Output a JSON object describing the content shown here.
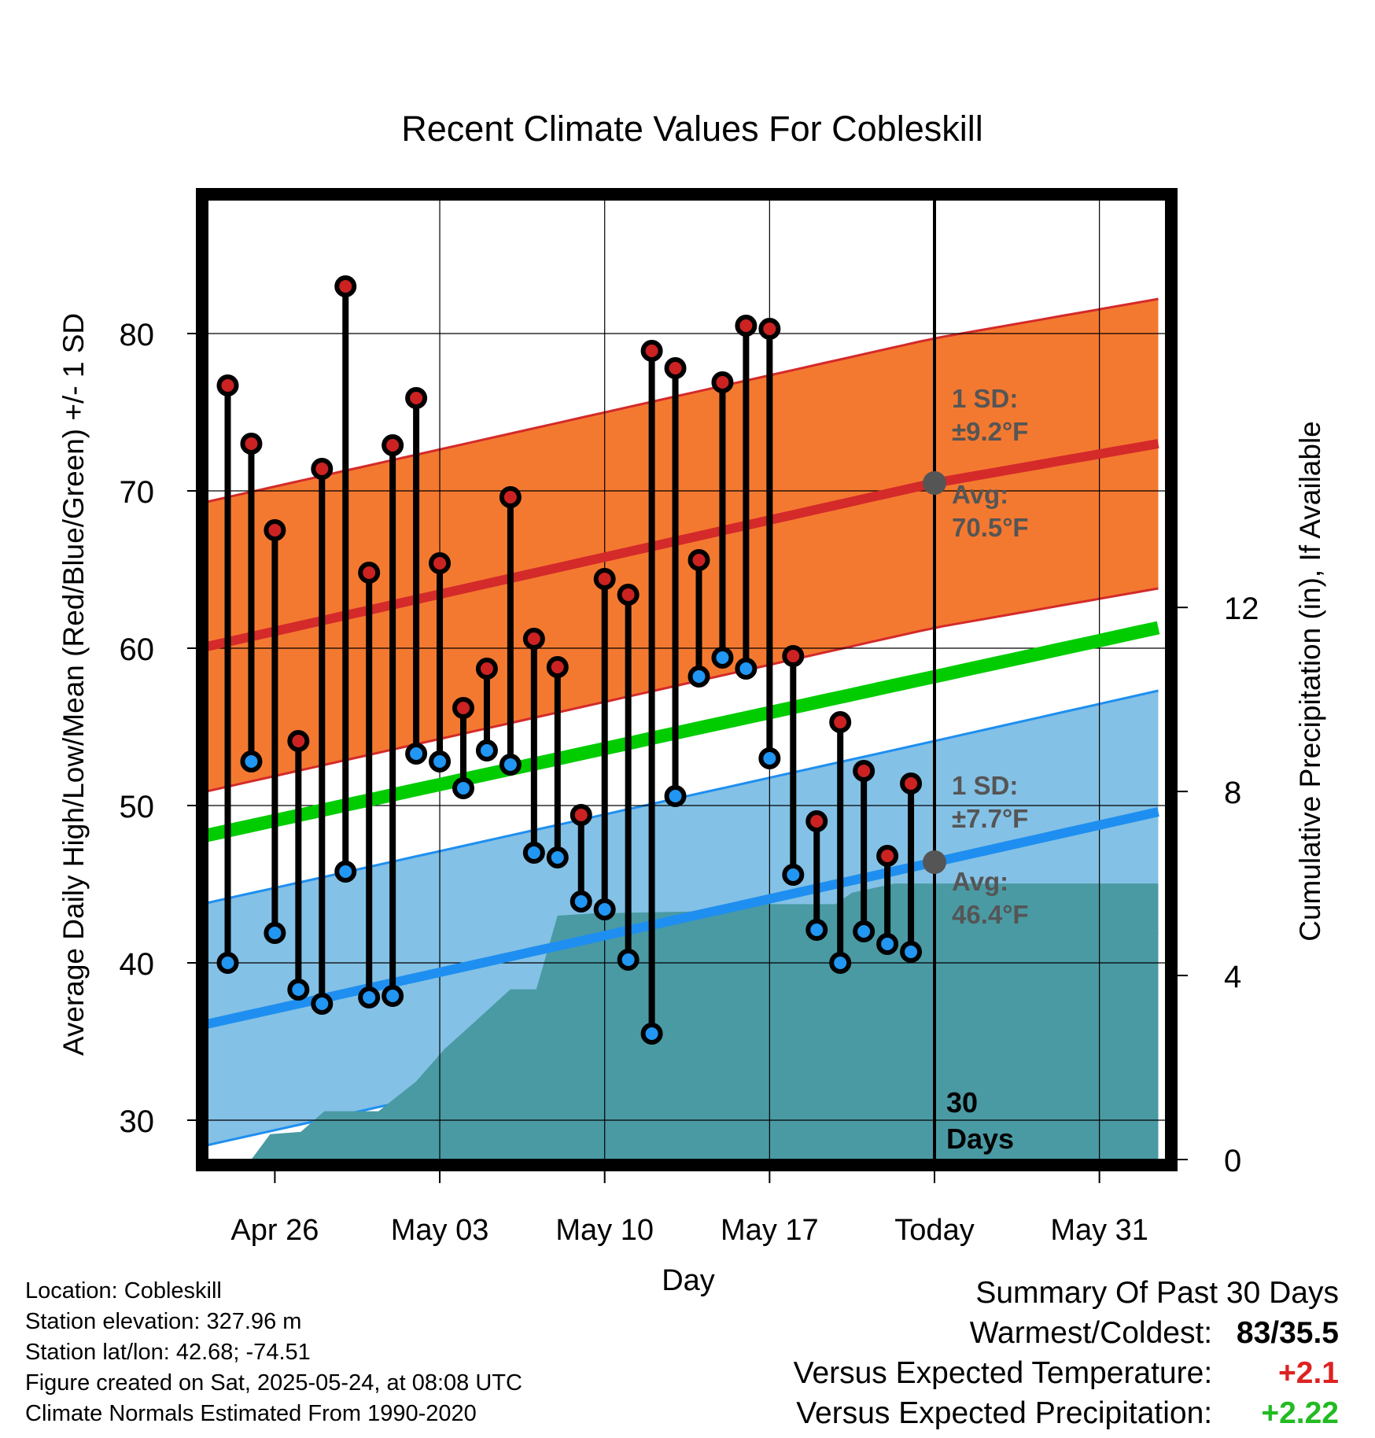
{
  "chart_data": {
    "type": "line",
    "title": "Recent Climate Values For Cobleskill",
    "xlabel": "Day",
    "ylabel": "Average Daily High/Low/Mean (Red/Blue/Green) +/- 1 SD",
    "y2label": "Cumulative Precipitation (in), If Available",
    "ylim": [
      27.5,
      88.5
    ],
    "y2lim": [
      0,
      20.86
    ],
    "y_ticks": [
      "30",
      "40",
      "50",
      "60",
      "70",
      "80"
    ],
    "y2_ticks": [
      "0",
      "4",
      "8",
      "12"
    ],
    "x_tick_labels": [
      "Apr 26",
      "May 03",
      "May 10",
      "May 17",
      "Today",
      "May 31"
    ],
    "today_label": "Today",
    "grid": true,
    "colors": {
      "high_band": "#f47930",
      "high_avg": "#d42a2a",
      "low_band": "#84c1e6",
      "low_avg": "#1e8ff0",
      "mean": "#00cc00",
      "precip": "#4a9aa4",
      "high_point": "#cc2222",
      "low_point": "#2196f3"
    },
    "normals": {
      "high_avg": {
        "start": 60.0,
        "today": 70.5,
        "end": 73.0
      },
      "high_sd": 9.2,
      "low_avg": {
        "start": 36.0,
        "today": 46.4,
        "end": 49.6
      },
      "low_sd": 7.7,
      "mean": {
        "start": 48.0,
        "end": 61.3
      }
    },
    "daily": [
      {
        "day": -30,
        "high": 76.7,
        "low": 40.0
      },
      {
        "day": -29,
        "high": 73.0,
        "low": 52.8
      },
      {
        "day": -28,
        "high": 67.5,
        "low": 41.9
      },
      {
        "day": -27,
        "high": 54.1,
        "low": 38.3
      },
      {
        "day": -26,
        "high": 71.4,
        "low": 37.4
      },
      {
        "day": -25,
        "high": 83.0,
        "low": 45.8
      },
      {
        "day": -24,
        "high": 64.8,
        "low": 37.8
      },
      {
        "day": -23,
        "high": 72.9,
        "low": 37.9
      },
      {
        "day": -22,
        "high": 75.9,
        "low": 53.3
      },
      {
        "day": -21,
        "high": 65.4,
        "low": 52.8
      },
      {
        "day": -20,
        "high": 56.2,
        "low": 51.1
      },
      {
        "day": -19,
        "high": 58.7,
        "low": 53.5
      },
      {
        "day": -18,
        "high": 69.6,
        "low": 52.6
      },
      {
        "day": -17,
        "high": 60.6,
        "low": 47.0
      },
      {
        "day": -16,
        "high": 58.8,
        "low": 46.7
      },
      {
        "day": -15,
        "high": 49.4,
        "low": 43.9
      },
      {
        "day": -14,
        "high": 64.4,
        "low": 43.4
      },
      {
        "day": -13,
        "high": 63.4,
        "low": 40.2
      },
      {
        "day": -12,
        "high": 78.9,
        "low": 35.5
      },
      {
        "day": -11,
        "high": 77.8,
        "low": 50.6
      },
      {
        "day": -10,
        "high": 65.6,
        "low": 58.2
      },
      {
        "day": -9,
        "high": 76.9,
        "low": 59.4
      },
      {
        "day": -8,
        "high": 80.5,
        "low": 58.7
      },
      {
        "day": -7,
        "high": 80.3,
        "low": 53.0
      },
      {
        "day": -6,
        "high": 59.5,
        "low": 45.6
      },
      {
        "day": -5,
        "high": 49.0,
        "low": 42.1
      },
      {
        "day": -4,
        "high": 55.3,
        "low": 40.0
      },
      {
        "day": -3,
        "high": 52.2,
        "low": 42.0
      },
      {
        "day": -2,
        "high": 46.8,
        "low": 41.2
      },
      {
        "day": -1,
        "high": 51.4,
        "low": 40.7
      }
    ],
    "precip_cumulative": [
      {
        "day": -29,
        "value": 0
      },
      {
        "day": -28.2,
        "value": 0.55
      },
      {
        "day": -26.9,
        "value": 0.6
      },
      {
        "day": -25.9,
        "value": 1.05
      },
      {
        "day": -23.6,
        "value": 1.05
      },
      {
        "day": -22,
        "value": 1.7
      },
      {
        "day": -20.8,
        "value": 2.4
      },
      {
        "day": -19.5,
        "value": 3.0
      },
      {
        "day": -18,
        "value": 3.7
      },
      {
        "day": -16.9,
        "value": 3.7
      },
      {
        "day": -16,
        "value": 5.3
      },
      {
        "day": -14.5,
        "value": 5.35
      },
      {
        "day": -9.5,
        "value": 5.4
      },
      {
        "day": -7.6,
        "value": 5.55
      },
      {
        "day": -4.2,
        "value": 5.55
      },
      {
        "day": -3.5,
        "value": 5.8
      },
      {
        "day": -1.7,
        "value": 6.0
      },
      {
        "day": 0,
        "value": 6.0
      },
      {
        "day": 9.5,
        "value": 6.0
      }
    ],
    "annotations": {
      "high": {
        "sd_label": "1 SD:",
        "sd_value": "±9.2°F",
        "avg_label": "Avg:",
        "avg_value": "70.5°F"
      },
      "low": {
        "sd_label": "1 SD:",
        "sd_value": "±7.7°F",
        "avg_label": "Avg:",
        "avg_value": "46.4°F"
      },
      "days_count": "30",
      "days_word": "Days"
    }
  },
  "info": {
    "location": "Location: Cobleskill",
    "elevation": "Station elevation: 327.96 m",
    "latlon": "Station lat/lon: 42.68; -74.51",
    "created": "Figure created on Sat, 2025-05-24, at 08:08 UTC",
    "normals": "Climate Normals Estimated From 1990-2020"
  },
  "summary": {
    "heading": "Summary Of Past 30 Days",
    "warmest_label": "Warmest/Coldest:",
    "warmest_value": "83/35.5",
    "temp_label": "Versus Expected Temperature:",
    "temp_value": "+2.1",
    "temp_color": "#dd2222",
    "precip_label": "Versus Expected Precipitation:",
    "precip_value": "+2.22",
    "precip_color": "#22bb22"
  }
}
